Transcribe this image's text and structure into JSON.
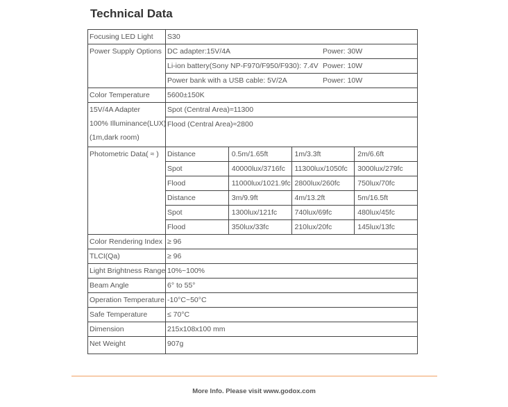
{
  "title": "Technical Data",
  "rows": {
    "model": {
      "label": "Focusing LED Light",
      "value": "S30"
    },
    "power": {
      "label": "Power Supply Options",
      "options": [
        {
          "source": "DC adapter:15V/4A",
          "power": "Power: 30W"
        },
        {
          "source": "Li-ion battery(Sony NP-F970/F950/F930): 7.4V",
          "power": "Power: 10W"
        },
        {
          "source": "Power bank with a USB cable: 5V/2A",
          "power": "Power: 10W"
        }
      ]
    },
    "color_temp": {
      "label": "Color Temperature",
      "value": "5600±150K"
    },
    "illuminance": {
      "label_lines": [
        "15V/4A Adapter",
        "100% Illuminance(LUX)",
        "(1m,dark room)"
      ],
      "spot": "Spot (Central Area)≈11300",
      "flood": "Flood (Central Area)≈2800"
    },
    "photometric": {
      "label": "Photometric Data( ≈ )",
      "rows": [
        [
          "Distance",
          "0.5m/1.65ft",
          "1m/3.3ft",
          "2m/6.6ft"
        ],
        [
          "Spot",
          "40000lux/3716fc",
          "11300lux/1050fc",
          "3000lux/279fc"
        ],
        [
          "Flood",
          "11000lux/1021.9fc",
          "2800lux/260fc",
          "750lux/70fc"
        ],
        [
          "Distance",
          "3m/9.9ft",
          "4m/13.2ft",
          "5m/16.5ft"
        ],
        [
          "Spot",
          "1300lux/121fc",
          "740lux/69fc",
          "480lux/45fc"
        ],
        [
          "Flood",
          "350lux/33fc",
          "210lux/20fc",
          "145lux/13fc"
        ]
      ]
    },
    "simple": [
      {
        "label": "Color Rendering Index",
        "value": "≥ 96"
      },
      {
        "label": "TLCI(Qa)",
        "value": "≥ 96"
      },
      {
        "label": "Light Brightness Range",
        "value": "10%~100%"
      },
      {
        "label": "Beam Angle",
        "value": "6° to 55°"
      },
      {
        "label": "Operation Temperature",
        "value": "-10°C~50°C"
      },
      {
        "label": "Safe Temperature",
        "value": "≤ 70°C"
      },
      {
        "label": "Dimension",
        "value": "215x108x100 mm"
      },
      {
        "label": "Net Weight",
        "value": "907g"
      }
    ]
  },
  "footer": "More Info. Please visit www.godox.com",
  "colors": {
    "rule": "#f0a060",
    "border": "#444444",
    "text": "#555555"
  }
}
